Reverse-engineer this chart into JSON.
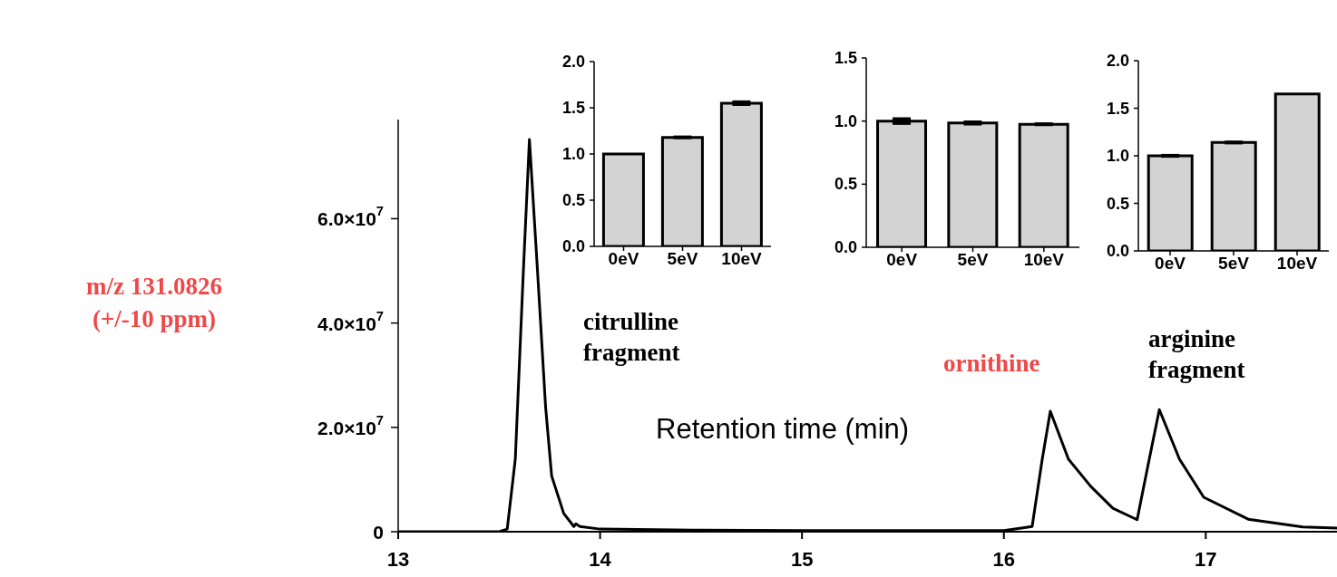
{
  "chart_data": [
    {
      "type": "line",
      "xlabel": "Retention time (min)",
      "ylabel": "m/z 131.0826 (+/-10 ppm)",
      "annotations": [
        "citrulline fragment",
        "ornithine",
        "arginine fragment"
      ],
      "xlim": [
        13,
        17.65
      ],
      "xticks": [
        13,
        14,
        15,
        16,
        17
      ],
      "ylim": [
        0,
        79000000
      ],
      "yticks": [
        0,
        {
          "value": 20000000,
          "label": "2.0×10$^{7}$"
        },
        {
          "value": 40000000,
          "label": "4.0×10$^{7}$"
        },
        {
          "value": 60000000,
          "label": "6.0×10$^{7}$"
        }
      ],
      "series": [
        {
          "color": "#000000",
          "x": [
            13.0,
            13.3,
            13.5,
            13.54,
            13.58,
            13.62,
            13.65,
            13.69,
            13.73,
            13.76,
            13.82,
            13.87,
            13.88,
            13.9,
            14.0,
            14.5,
            15.0,
            15.5,
            16.0,
            16.14,
            16.19,
            16.23,
            16.32,
            16.43,
            16.54,
            16.66,
            16.72,
            16.77,
            16.87,
            16.99,
            17.21,
            17.48,
            17.65
          ],
          "values": [
            0,
            0,
            0,
            500000,
            13900000,
            50000000,
            75200000,
            50000000,
            24000000,
            10700000,
            3500000,
            1000000,
            1500000,
            1000000,
            500000,
            300000,
            200000,
            200000,
            200000,
            1000000,
            13900000,
            23100000,
            13900000,
            8700000,
            4500000,
            2300000,
            13900000,
            23400000,
            13900000,
            6600000,
            2400000,
            900000,
            700000
          ]
        }
      ]
    },
    {
      "type": "bar",
      "categories": [
        "0eV",
        "5eV",
        "10eV"
      ],
      "ylim": [
        0,
        2
      ],
      "yticks": [
        {
          "value": 0,
          "label": "0.0"
        },
        0.5,
        {
          "value": 1,
          "label": "1.0"
        },
        1.5,
        {
          "value": 2,
          "label": "2.0"
        }
      ],
      "color": "#d3d3d3",
      "values": [
        1.0,
        1.18,
        1.55
      ],
      "errors": [
        null,
        0.02,
        0.03
      ]
    },
    {
      "type": "bar",
      "categories": [
        "0eV",
        "5eV",
        "10eV"
      ],
      "ylim": [
        0,
        1.5
      ],
      "yticks": [
        {
          "value": 0,
          "label": "0.0"
        },
        0.5,
        {
          "value": 1,
          "label": "1.0"
        },
        1.5
      ],
      "color": "#d3d3d3",
      "values": [
        1.0,
        0.985,
        0.975
      ],
      "errors": [
        0.03,
        0.02,
        0.015
      ]
    },
    {
      "type": "bar",
      "categories": [
        "0eV",
        "5eV",
        "10eV"
      ],
      "ylim": [
        0,
        2
      ],
      "yticks": [
        {
          "value": 0,
          "label": "0.0"
        },
        0.5,
        {
          "value": 1,
          "label": "1.0"
        },
        1.5,
        {
          "value": 2,
          "label": "2.0"
        }
      ],
      "color": "#d3d3d3",
      "values": [
        1.0,
        1.14,
        1.65
      ],
      "errors": [
        0.02,
        0.02,
        null
      ]
    }
  ]
}
